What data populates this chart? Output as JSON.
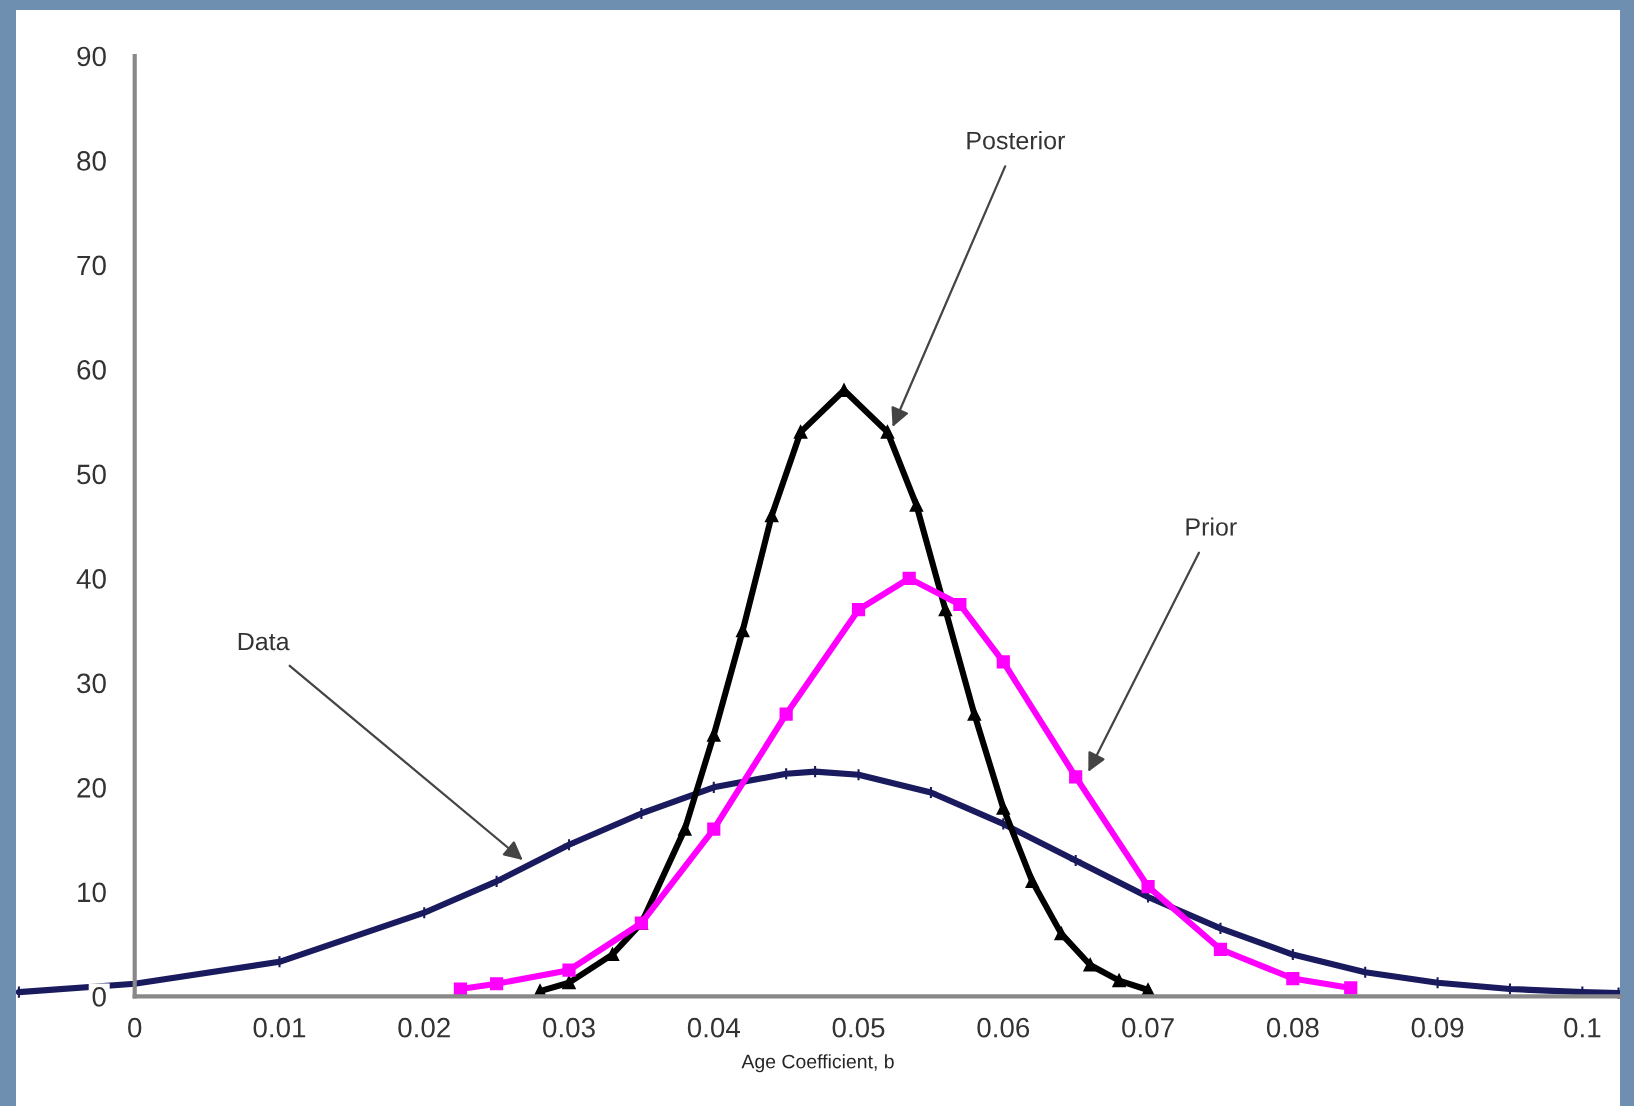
{
  "chart_data": {
    "type": "line",
    "xlabel": "Age Coefficient, b",
    "xlim": [
      -0.0082,
      0.1026
    ],
    "ylim": [
      -10.5,
      94.4
    ],
    "xticks": [
      0,
      0.01,
      0.02,
      0.03,
      0.04,
      0.05,
      0.06,
      0.07,
      0.08,
      0.09,
      0.1
    ],
    "yticks": [
      0,
      10,
      20,
      30,
      40,
      50,
      60,
      70,
      80,
      90
    ],
    "grid": false,
    "legend": false,
    "series": [
      {
        "color": "#1a1a5e",
        "marker": "cross",
        "x": [
          -0.008,
          0,
          0.01,
          0.02,
          0.025,
          0.03,
          0.035,
          0.04,
          0.045,
          0.047,
          0.05,
          0.055,
          0.06,
          0.065,
          0.07,
          0.075,
          0.08,
          0.085,
          0.09,
          0.095,
          0.1,
          0.1025
        ],
        "values": [
          0.4,
          1.2,
          3.3,
          8,
          11,
          14.5,
          17.5,
          20,
          21.3,
          21.5,
          21.2,
          19.5,
          16.5,
          13,
          9.5,
          6.5,
          4,
          2.3,
          1.3,
          0.7,
          0.4,
          0.3
        ]
      },
      {
        "color": "#000000",
        "marker": "triangle",
        "x": [
          0.028,
          0.03,
          0.033,
          0.035,
          0.038,
          0.04,
          0.042,
          0.044,
          0.046,
          0.049,
          0.052,
          0.054,
          0.056,
          0.058,
          0.06,
          0.062,
          0.064,
          0.066,
          0.068,
          0.07
        ],
        "values": [
          0.5,
          1.3,
          4,
          7,
          16,
          25,
          35,
          46,
          54,
          58,
          54,
          47,
          37,
          27,
          18,
          11,
          6,
          3,
          1.5,
          0.6
        ]
      },
      {
        "color": "#ff00ff",
        "marker": "square",
        "x": [
          0.0225,
          0.025,
          0.03,
          0.035,
          0.04,
          0.045,
          0.05,
          0.0535,
          0.057,
          0.06,
          0.065,
          0.07,
          0.075,
          0.08,
          0.084
        ],
        "values": [
          0.7,
          1.2,
          2.5,
          7,
          16,
          27,
          37,
          40,
          37.5,
          32,
          21,
          10.5,
          4.5,
          1.7,
          0.8
        ]
      }
    ],
    "annotations": [
      {
        "text": "Posterior",
        "x": 0.0522,
        "y": 54
      },
      {
        "text": "Prior",
        "x": 0.0657,
        "y": 21
      },
      {
        "text": "Data",
        "x": 0.0271,
        "y": 12.7
      }
    ]
  }
}
